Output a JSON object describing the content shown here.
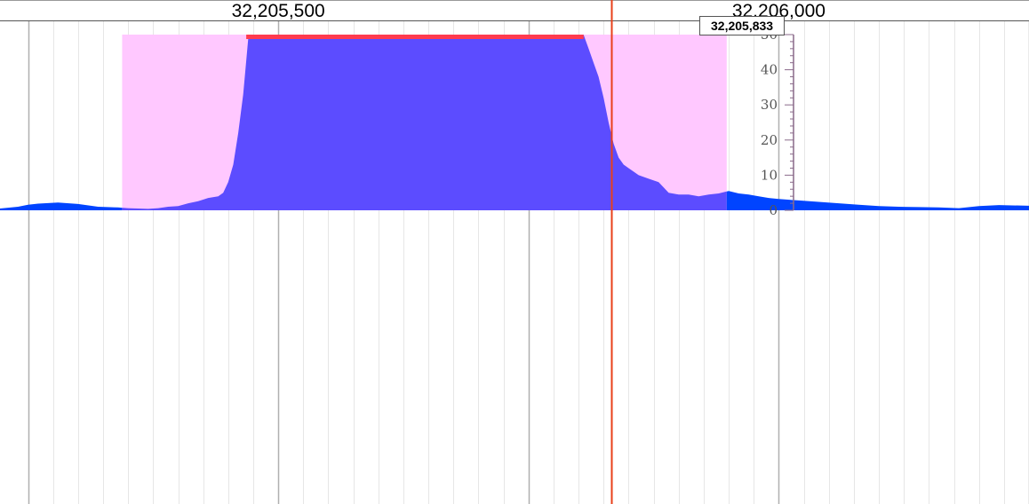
{
  "ruler": {
    "labels": [
      {
        "text": "32,205,500",
        "pos": 32205500
      },
      {
        "text": "32,206,000",
        "pos": 32206000
      }
    ]
  },
  "cursor": {
    "label": "32,205,833",
    "pos": 32205833
  },
  "colors": {
    "coverage": "#0044ff",
    "selected_coverage": "#5c4cff",
    "highlight": "#ffc8ff",
    "clip": "#ff3b4f",
    "cursor": "#e8401a",
    "grid_major": "#b0b0b0",
    "grid_minor": "#e6e6e6"
  },
  "chart_data": {
    "type": "area",
    "xlabel": "",
    "ylabel": "",
    "xlim": [
      32205222,
      32206250
    ],
    "ylim": [
      0,
      50
    ],
    "y_ticks": [
      "0",
      "10",
      "20",
      "30",
      "40",
      "50"
    ],
    "grid": true,
    "highlight_range": [
      32205344,
      32205948
    ],
    "clip_range": [
      32205468,
      32205805
    ],
    "x": [
      32205222,
      32205240,
      32205250,
      32205260,
      32205280,
      32205300,
      32205320,
      32205340,
      32205350,
      32205360,
      32205370,
      32205380,
      32205390,
      32205400,
      32205410,
      32205420,
      32205430,
      32205440,
      32205445,
      32205450,
      32205455,
      32205460,
      32205465,
      32205470,
      32205805,
      32205810,
      32205815,
      32205820,
      32205825,
      32205830,
      32205835,
      32205840,
      32205845,
      32205850,
      32205855,
      32205860,
      32205870,
      32205880,
      32205890,
      32205900,
      32205910,
      32205920,
      32205930,
      32205940,
      32205950,
      32205960,
      32205970,
      32205980,
      32205990,
      32206000,
      32206020,
      32206040,
      32206060,
      32206080,
      32206100,
      32206120,
      32206140,
      32206160,
      32206180,
      32206200,
      32206220,
      32206250
    ],
    "y": [
      0.5,
      1.0,
      1.6,
      1.9,
      2.2,
      1.8,
      1.0,
      0.8,
      0.6,
      0.5,
      0.4,
      0.6,
      1.0,
      1.2,
      2.0,
      2.6,
      3.5,
      4.0,
      5.0,
      8.0,
      13.0,
      22.0,
      33.0,
      49.0,
      50.0,
      46.0,
      42.0,
      38.0,
      32.0,
      25.0,
      19.0,
      15.0,
      13.0,
      12.0,
      11.0,
      10.0,
      9.0,
      8.0,
      5.0,
      4.5,
      4.5,
      4.0,
      4.5,
      4.8,
      5.5,
      4.8,
      4.5,
      4.0,
      3.5,
      3.2,
      2.8,
      2.4,
      2.0,
      1.6,
      1.2,
      1.0,
      0.9,
      0.8,
      0.6,
      1.2,
      1.5,
      1.3
    ]
  }
}
